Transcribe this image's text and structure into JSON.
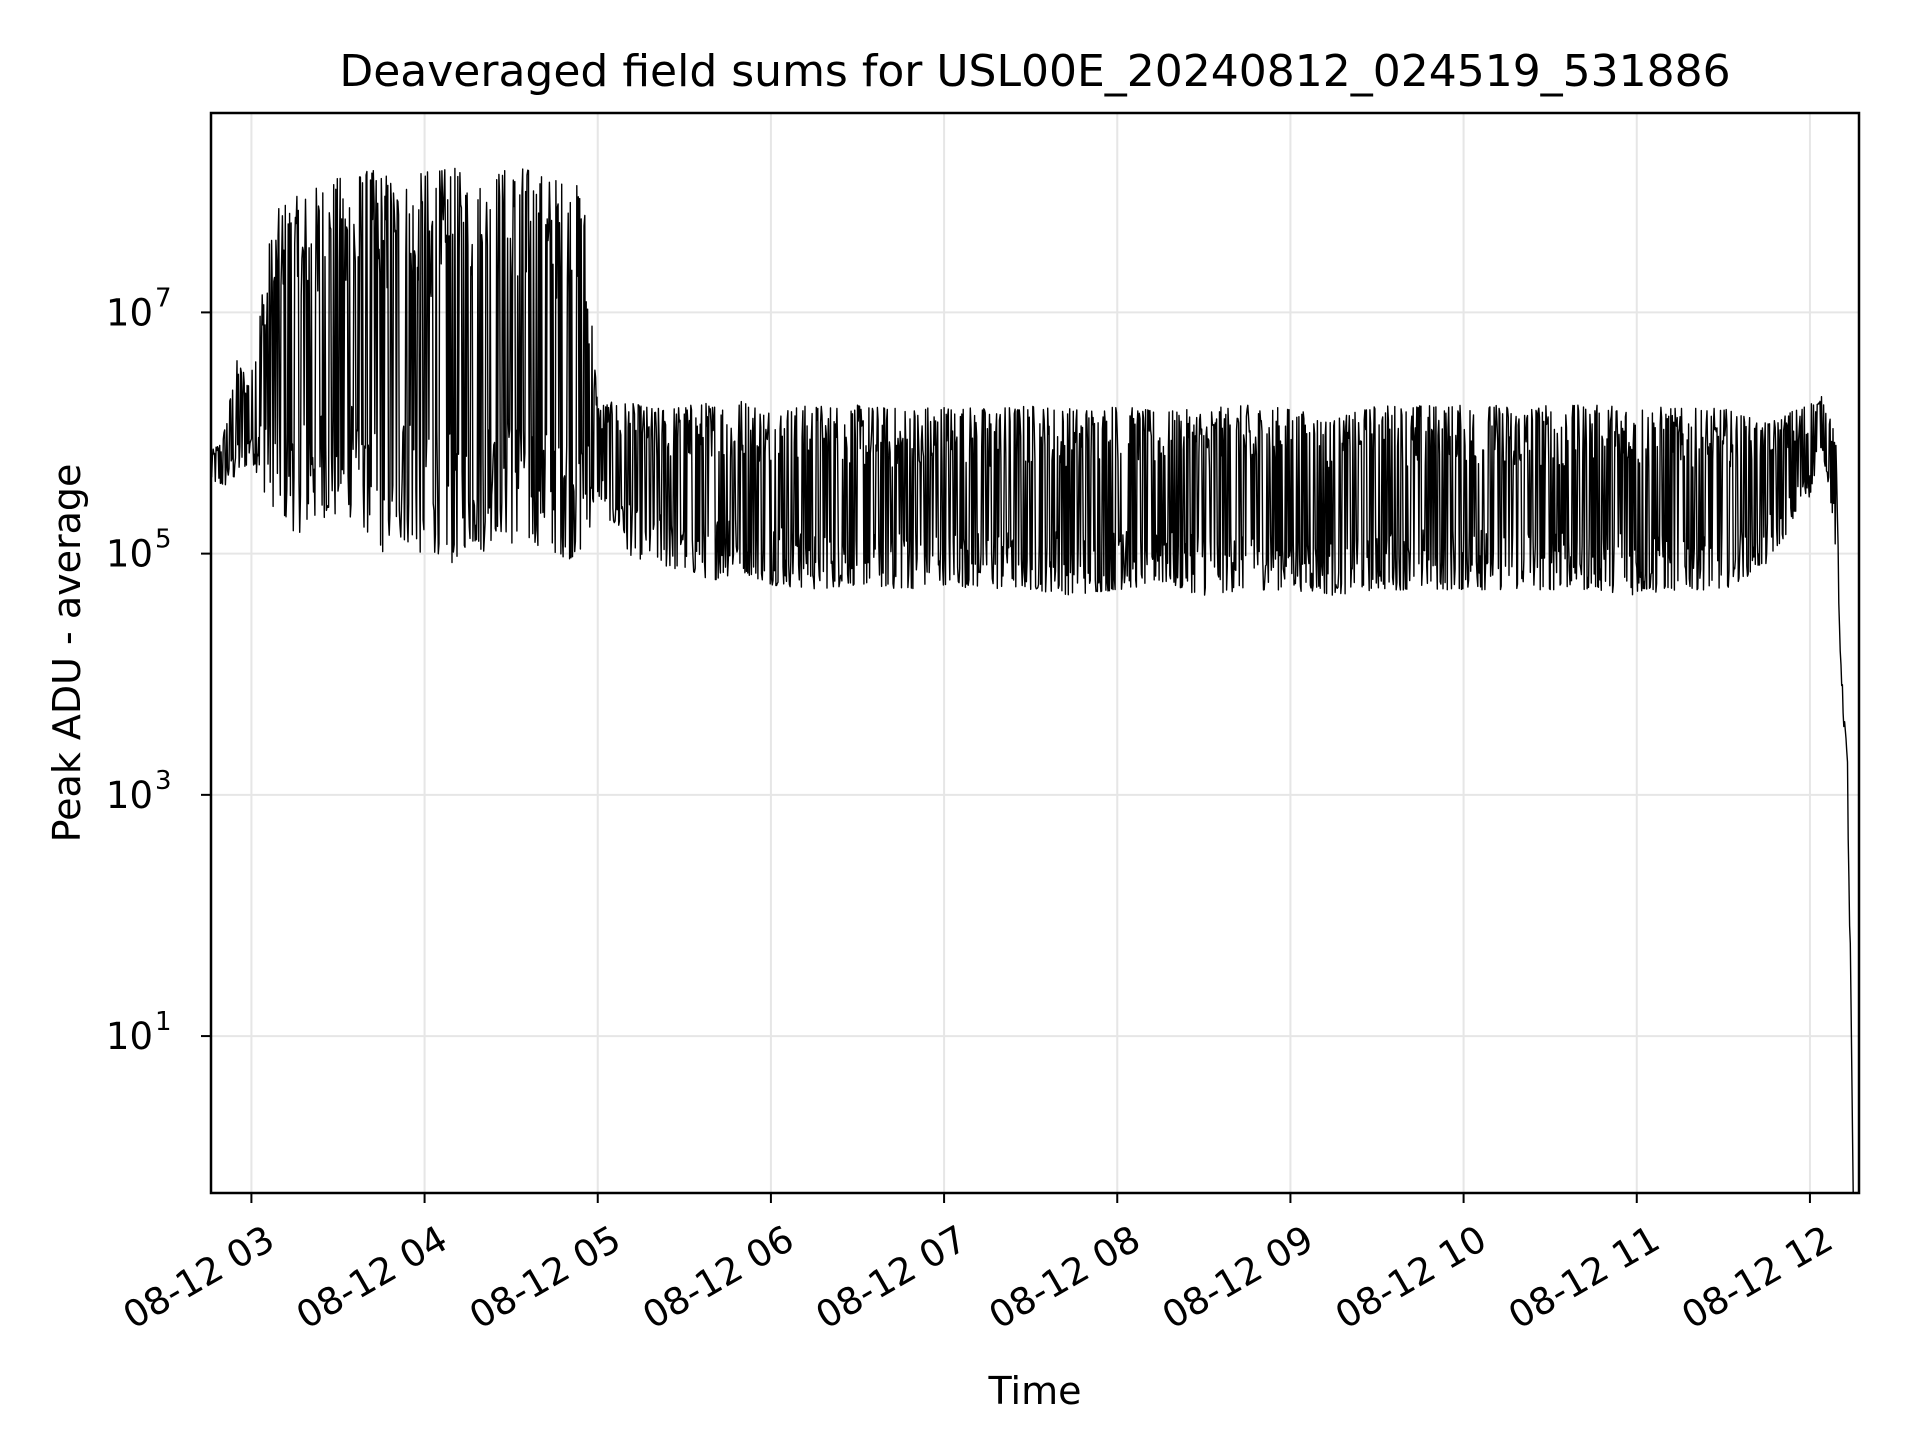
{
  "chart_data": {
    "type": "line",
    "title": "Deaveraged field sums for USL00E_20240812_024519_531886",
    "xlabel": "Time",
    "ylabel": "Peak ADU - average",
    "xscale": "time",
    "yscale": "log",
    "xlim": [
      "2024-08-12 02:46",
      "2024-08-12 12:17"
    ],
    "ylim": [
      0.5,
      450000000.0
    ],
    "grid": true,
    "legend": "none",
    "line_color": "#000000",
    "x_ticks": [
      {
        "value": "2024-08-12 03:00",
        "label": "08-12 03"
      },
      {
        "value": "2024-08-12 04:00",
        "label": "08-12 04"
      },
      {
        "value": "2024-08-12 05:00",
        "label": "08-12 05"
      },
      {
        "value": "2024-08-12 06:00",
        "label": "08-12 06"
      },
      {
        "value": "2024-08-12 07:00",
        "label": "08-12 07"
      },
      {
        "value": "2024-08-12 08:00",
        "label": "08-12 08"
      },
      {
        "value": "2024-08-12 09:00",
        "label": "08-12 09"
      },
      {
        "value": "2024-08-12 10:00",
        "label": "08-12 10"
      },
      {
        "value": "2024-08-12 11:00",
        "label": "08-12 11"
      },
      {
        "value": "2024-08-12 12:00",
        "label": "08-12 12"
      }
    ],
    "y_ticks": [
      {
        "value": 10,
        "base": "10",
        "exp": "1"
      },
      {
        "value": 1000,
        "base": "10",
        "exp": "3"
      },
      {
        "value": 100000,
        "base": "10",
        "exp": "5"
      },
      {
        "value": 10000000,
        "base": "10",
        "exp": "7"
      }
    ],
    "series": [
      {
        "x": [
          "2024-08-12 02:46",
          "2024-08-12 02:50",
          "2024-08-12 02:55",
          "2024-08-12 03:00",
          "2024-08-12 03:05",
          "2024-08-12 03:10",
          "2024-08-12 03:15",
          "2024-08-12 03:20",
          "2024-08-12 03:25",
          "2024-08-12 03:30",
          "2024-08-12 03:35",
          "2024-08-12 03:40",
          "2024-08-12 03:45",
          "2024-08-12 03:50",
          "2024-08-12 03:55",
          "2024-08-12 04:00",
          "2024-08-12 04:05",
          "2024-08-12 04:10",
          "2024-08-12 04:15",
          "2024-08-12 04:20",
          "2024-08-12 04:25",
          "2024-08-12 04:30",
          "2024-08-12 04:35",
          "2024-08-12 04:40",
          "2024-08-12 04:45",
          "2024-08-12 04:50",
          "2024-08-12 04:55",
          "2024-08-12 05:00",
          "2024-08-12 05:10",
          "2024-08-12 05:20",
          "2024-08-12 05:30",
          "2024-08-12 05:40",
          "2024-08-12 05:50",
          "2024-08-12 06:00",
          "2024-08-12 06:15",
          "2024-08-12 06:30",
          "2024-08-12 06:45",
          "2024-08-12 07:00",
          "2024-08-12 07:15",
          "2024-08-12 07:30",
          "2024-08-12 07:45",
          "2024-08-12 08:00",
          "2024-08-12 08:15",
          "2024-08-12 08:30",
          "2024-08-12 08:45",
          "2024-08-12 09:00",
          "2024-08-12 09:15",
          "2024-08-12 09:30",
          "2024-08-12 09:45",
          "2024-08-12 10:00",
          "2024-08-12 10:15",
          "2024-08-12 10:30",
          "2024-08-12 10:45",
          "2024-08-12 11:00",
          "2024-08-12 11:15",
          "2024-08-12 11:30",
          "2024-08-12 11:45",
          "2024-08-12 12:00",
          "2024-08-12 12:04",
          "2024-08-12 12:07",
          "2024-08-12 12:09",
          "2024-08-12 12:11",
          "2024-08-12 12:13",
          "2024-08-12 12:14",
          "2024-08-12 12:15"
        ],
        "high": [
          700000,
          900000,
          4000000,
          3000000,
          30000000.0,
          80000000.0,
          90000000.0,
          100000000.0,
          120000000.0,
          130000000.0,
          140000000.0,
          150000000.0,
          150000000.0,
          130000000.0,
          120000000.0,
          150000000.0,
          150000000.0,
          160000000.0,
          130000000.0,
          120000000.0,
          150000000.0,
          160000000.0,
          160000000.0,
          140000000.0,
          130000000.0,
          120000000.0,
          110000000.0,
          1800000,
          1800000,
          1600000,
          1700000,
          1800000,
          1900000,
          1600000,
          1700000,
          1700000,
          1600000,
          1700000,
          1600000,
          1700000,
          1600000,
          1700000,
          1500000,
          1600000,
          1700000,
          1600000,
          1300000,
          1700000,
          1700000,
          1700000,
          1700000,
          1700000,
          1700000,
          1700000,
          1600000,
          1600000,
          1200000,
          1800000,
          2000000,
          1500000,
          800000,
          10000,
          2000,
          60,
          0.5
        ],
        "low": [
          400000,
          350000,
          400000,
          600000,
          300000,
          200000,
          150000,
          150000,
          200000,
          180000,
          200000,
          150000,
          100000,
          120000,
          120000,
          90000,
          100000,
          80000,
          120000,
          100000,
          150000,
          120000,
          100000,
          120000,
          100000,
          90000,
          100000,
          300000,
          100000,
          80000,
          70000,
          60000,
          70000,
          55000,
          50000,
          55000,
          50000,
          55000,
          50000,
          50000,
          45000,
          50000,
          55000,
          45000,
          50000,
          50000,
          45000,
          50000,
          50000,
          50000,
          50000,
          50000,
          50000,
          45000,
          50000,
          50000,
          80000,
          300000,
          800000,
          300000,
          100000,
          8000,
          1000,
          30,
          0.5
        ]
      }
    ]
  }
}
